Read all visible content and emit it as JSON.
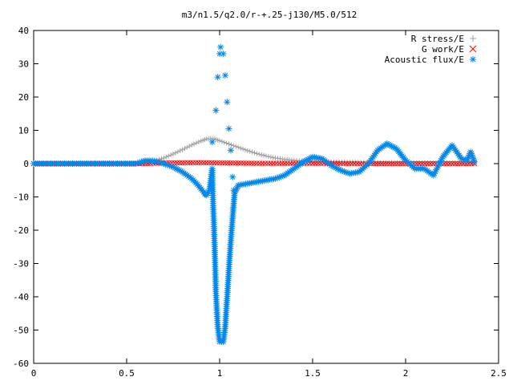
{
  "chart_data": {
    "type": "scatter",
    "title": "m3/n1.5/q2.0/r-+.25-j130/M5.0/512",
    "xlabel": "",
    "ylabel": "",
    "xlim": [
      0,
      2.5
    ],
    "ylim": [
      -60,
      40
    ],
    "x_ticks": [
      "0",
      "0.5",
      "1",
      "1.5",
      "2",
      "2.5"
    ],
    "y_ticks": [
      "40",
      "30",
      "20",
      "10",
      "0",
      "-10",
      "-20",
      "-30",
      "-40",
      "-50",
      "-60"
    ],
    "grid": false,
    "legend_position": "top-right",
    "series": [
      {
        "name": "R stress/E",
        "marker": "+",
        "color": "#a0a0a0",
        "points": [
          [
            0,
            0
          ],
          [
            0.55,
            0
          ],
          [
            0.6,
            0.1
          ],
          [
            0.65,
            0.8
          ],
          [
            0.7,
            1.7
          ],
          [
            0.75,
            2.9
          ],
          [
            0.8,
            4.2
          ],
          [
            0.85,
            5.6
          ],
          [
            0.9,
            6.8
          ],
          [
            0.93,
            7.4
          ],
          [
            0.95,
            7.5
          ],
          [
            0.97,
            7.4
          ],
          [
            1.0,
            6.9
          ],
          [
            1.05,
            5.9
          ],
          [
            1.1,
            4.9
          ],
          [
            1.15,
            3.9
          ],
          [
            1.2,
            3.0
          ],
          [
            1.25,
            2.3
          ],
          [
            1.3,
            1.7
          ],
          [
            1.35,
            1.3
          ],
          [
            1.4,
            1.0
          ],
          [
            1.5,
            0.6
          ],
          [
            1.7,
            0.4
          ],
          [
            2.0,
            0.3
          ],
          [
            2.37,
            0.2
          ]
        ]
      },
      {
        "name": "G work/E",
        "marker": "x",
        "color": "#ff0000",
        "points": [
          [
            0,
            0
          ],
          [
            0.6,
            0
          ],
          [
            0.7,
            0.2
          ],
          [
            0.9,
            0.3
          ],
          [
            1.0,
            0.2
          ],
          [
            1.2,
            0.1
          ],
          [
            1.5,
            0.1
          ],
          [
            1.8,
            0.0
          ],
          [
            2.0,
            0.0
          ],
          [
            2.37,
            0.0
          ]
        ]
      },
      {
        "name": "Acoustic flux/E",
        "marker": "*",
        "color": "#0088ee",
        "points": [
          [
            0,
            0
          ],
          [
            0.55,
            0
          ],
          [
            0.6,
            0.9
          ],
          [
            0.65,
            0.8
          ],
          [
            0.7,
            0
          ],
          [
            0.75,
            -1.0
          ],
          [
            0.8,
            -2.5
          ],
          [
            0.85,
            -4.5
          ],
          [
            0.88,
            -6.2
          ],
          [
            0.9,
            -7.6
          ],
          [
            0.92,
            -9.0
          ],
          [
            0.93,
            -9.5
          ],
          [
            0.945,
            -8.0
          ],
          [
            0.96,
            -1.5
          ],
          [
            0.965,
            -12
          ],
          [
            0.97,
            -19.5
          ],
          [
            0.975,
            -28.5
          ],
          [
            0.98,
            -39
          ],
          [
            0.99,
            -49
          ],
          [
            1.0,
            -53.5
          ],
          [
            1.02,
            -53.5
          ],
          [
            1.03,
            -49
          ],
          [
            1.04,
            -40.5
          ],
          [
            1.05,
            -31.5
          ],
          [
            1.06,
            -23
          ],
          [
            1.07,
            -16
          ],
          [
            1.08,
            -9
          ],
          [
            1.1,
            -6.5
          ],
          [
            1.15,
            -6.0
          ],
          [
            1.2,
            -5.5
          ],
          [
            1.25,
            -5.0
          ],
          [
            1.3,
            -4.5
          ],
          [
            1.35,
            -3.5
          ],
          [
            1.4,
            -1.5
          ],
          [
            1.45,
            0.5
          ],
          [
            1.5,
            2.0
          ],
          [
            1.55,
            1.5
          ],
          [
            1.6,
            -0.5
          ],
          [
            1.65,
            -2.0
          ],
          [
            1.7,
            -3.0
          ],
          [
            1.75,
            -2.5
          ],
          [
            1.8,
            0.0
          ],
          [
            1.85,
            4.0
          ],
          [
            1.9,
            6.0
          ],
          [
            1.95,
            4.5
          ],
          [
            2.0,
            1.0
          ],
          [
            2.05,
            -1.5
          ],
          [
            2.1,
            -1.5
          ],
          [
            2.15,
            -3.5
          ],
          [
            2.2,
            2.0
          ],
          [
            2.25,
            5.5
          ],
          [
            2.3,
            1.5
          ],
          [
            2.33,
            1.0
          ],
          [
            2.35,
            3.5
          ],
          [
            2.37,
            0.5
          ]
        ],
        "spike_points": [
          [
            0.96,
            6.5
          ],
          [
            0.98,
            16
          ],
          [
            0.99,
            26
          ],
          [
            1.0,
            33
          ],
          [
            1.005,
            35
          ],
          [
            1.02,
            33
          ],
          [
            1.03,
            26.5
          ],
          [
            1.04,
            18.5
          ],
          [
            1.05,
            10.5
          ],
          [
            1.06,
            4.0
          ],
          [
            1.07,
            -4.0
          ],
          [
            1.075,
            -8.0
          ]
        ]
      }
    ]
  }
}
